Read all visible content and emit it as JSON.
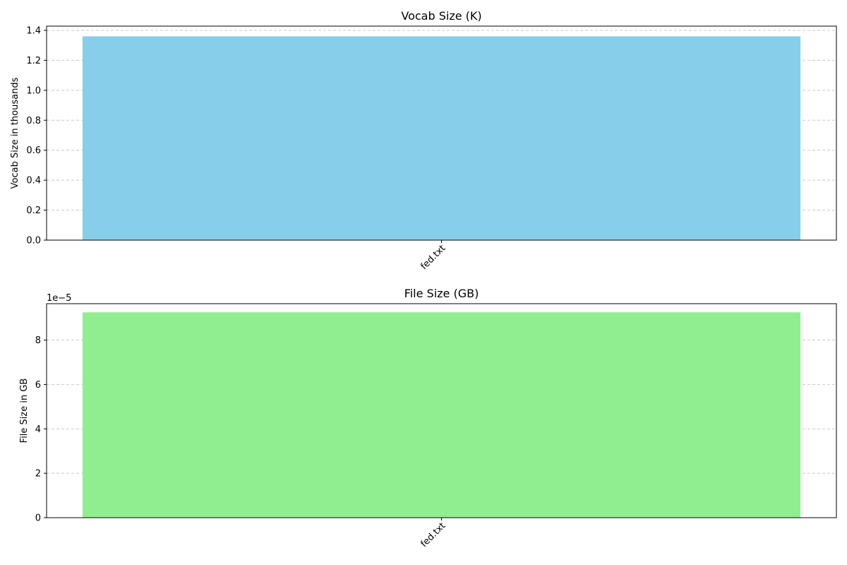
{
  "chart_data": [
    {
      "type": "bar",
      "title": "Vocab Size (K)",
      "xlabel": "",
      "ylabel": "Vocab Size in thousands",
      "categories": [
        "fed.txt"
      ],
      "values": [
        1.36
      ],
      "ylim": [
        0,
        1.428
      ],
      "yticks": [
        0.0,
        0.2,
        0.4,
        0.6,
        0.8,
        1.0,
        1.2,
        1.4
      ],
      "ytick_labels": [
        "0.0",
        "0.2",
        "0.4",
        "0.6",
        "0.8",
        "1.0",
        "1.2",
        "1.4"
      ],
      "offset_label": "",
      "grid": "y-dashed",
      "bar_color": "#87ceeb"
    },
    {
      "type": "bar",
      "title": "File Size (GB)",
      "xlabel": "",
      "ylabel": "File Size in GB",
      "categories": [
        "fed.txt"
      ],
      "values": [
        9.25e-05
      ],
      "ylim": [
        0,
        9.64e-05
      ],
      "yticks": [
        0,
        2e-05,
        4e-05,
        6e-05,
        8e-05
      ],
      "ytick_labels": [
        "0",
        "2",
        "4",
        "6",
        "8"
      ],
      "offset_label": "1e−5",
      "grid": "y-dashed",
      "bar_color": "#90ee90"
    }
  ]
}
